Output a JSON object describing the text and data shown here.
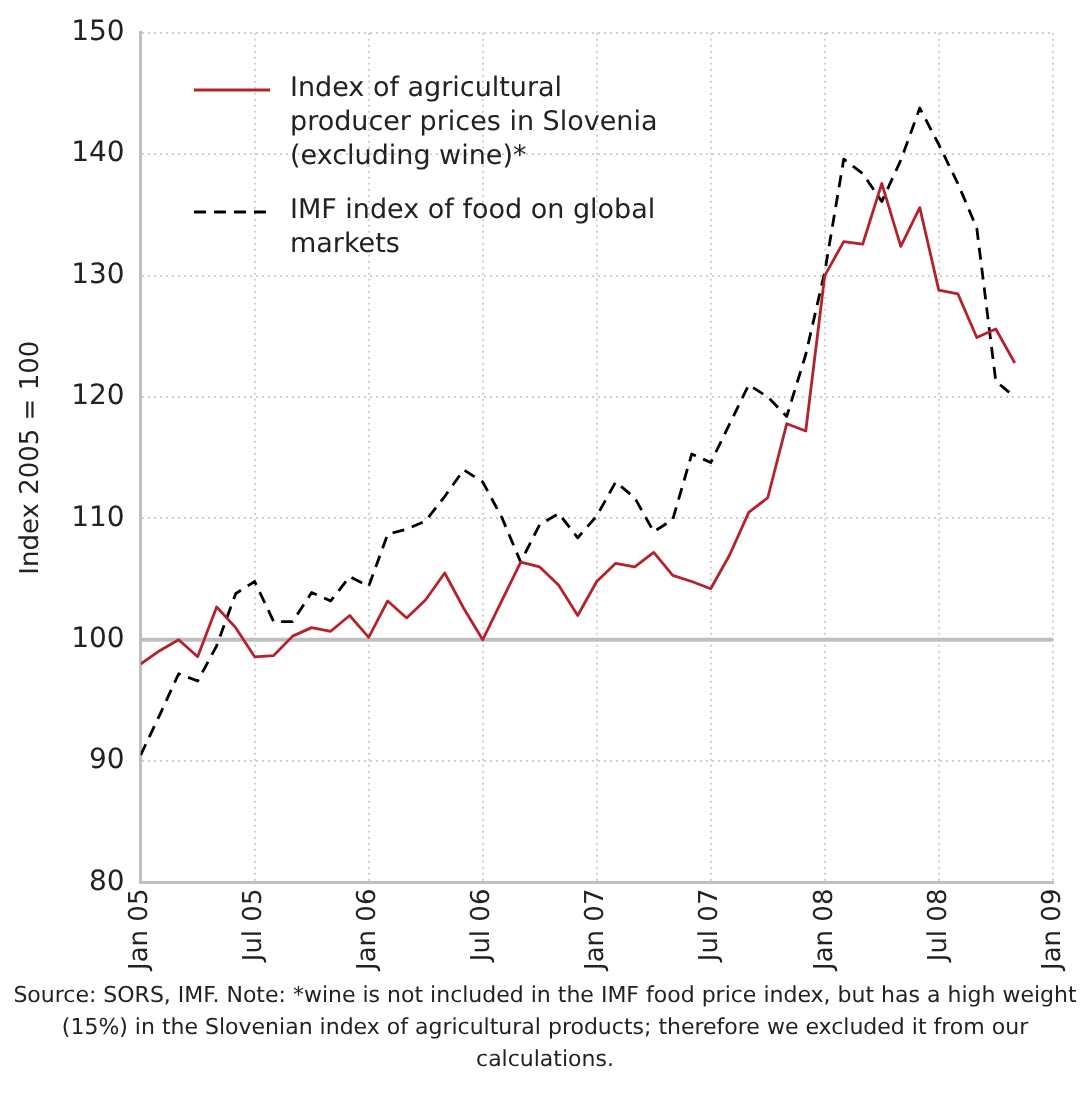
{
  "chart_data": {
    "type": "line",
    "ylabel": "Index 2005 = 100",
    "x": [
      "2005-01",
      "2005-02",
      "2005-03",
      "2005-04",
      "2005-05",
      "2005-06",
      "2005-07",
      "2005-08",
      "2005-09",
      "2005-10",
      "2005-11",
      "2005-12",
      "2006-01",
      "2006-02",
      "2006-03",
      "2006-04",
      "2006-05",
      "2006-06",
      "2006-07",
      "2006-08",
      "2006-09",
      "2006-10",
      "2006-11",
      "2006-12",
      "2007-01",
      "2007-02",
      "2007-03",
      "2007-04",
      "2007-05",
      "2007-06",
      "2007-07",
      "2007-08",
      "2007-09",
      "2007-10",
      "2007-11",
      "2007-12",
      "2008-01",
      "2008-02",
      "2008-03",
      "2008-04",
      "2008-05",
      "2008-06",
      "2008-07",
      "2008-08",
      "2008-09",
      "2008-10",
      "2008-11"
    ],
    "series": [
      {
        "name": "Index of agricultural producer prices in Slovenia (excluding wine)*",
        "color": "#b5222a",
        "line_style": "solid",
        "values": [
          98.0,
          99.1,
          100.0,
          98.6,
          102.7,
          101.0,
          98.6,
          98.7,
          100.3,
          101.0,
          100.7,
          102.0,
          100.2,
          103.2,
          101.8,
          103.3,
          105.5,
          102.6,
          100.0,
          103.2,
          106.4,
          106.0,
          104.5,
          102.0,
          104.8,
          106.3,
          106.0,
          107.2,
          105.3,
          104.8,
          104.2,
          107.0,
          110.5,
          111.7,
          117.8,
          117.2,
          130.0,
          132.8,
          132.6,
          137.6,
          132.4,
          135.6,
          128.8,
          128.5,
          124.9,
          125.6,
          122.8
        ]
      },
      {
        "name": "IMF index of food on global markets",
        "color": "#000000",
        "line_style": "dashed",
        "values": [
          90.5,
          93.8,
          97.2,
          96.6,
          99.5,
          103.8,
          104.8,
          101.5,
          101.5,
          103.9,
          103.2,
          105.2,
          104.4,
          108.7,
          109.1,
          109.8,
          111.8,
          114.0,
          113.0,
          110.1,
          106.4,
          109.5,
          110.4,
          108.4,
          110.2,
          113.0,
          111.7,
          108.9,
          109.9,
          115.3,
          114.6,
          117.8,
          121.0,
          120.0,
          118.4,
          123.5,
          130.3,
          139.6,
          138.4,
          136.1,
          139.5,
          143.8,
          140.8,
          137.6,
          133.9,
          121.3,
          120.0
        ]
      }
    ],
    "xlim": [
      "2005-01",
      "2009-01"
    ],
    "xticks": [
      {
        "value": "2005-01",
        "label": "Jan 05"
      },
      {
        "value": "2005-07",
        "label": "Jul 05"
      },
      {
        "value": "2006-01",
        "label": "Jan 06"
      },
      {
        "value": "2006-07",
        "label": "Jul 06"
      },
      {
        "value": "2007-01",
        "label": "Jan 07"
      },
      {
        "value": "2007-07",
        "label": "Jul 07"
      },
      {
        "value": "2008-01",
        "label": "Jan 08"
      },
      {
        "value": "2008-07",
        "label": "Jul 08"
      },
      {
        "value": "2009-01",
        "label": "Jan 09"
      }
    ],
    "ylim": [
      80,
      150
    ],
    "yticks": [
      80,
      90,
      100,
      110,
      120,
      130,
      140,
      150
    ],
    "grid": true,
    "legend": "top left",
    "marker": "none",
    "ref_lines": [
      {
        "axis": "y",
        "value": 100,
        "color": "#bfbfbf"
      }
    ],
    "annotations": [
      "Source: SORS, IMF. Note: *wine is not included in the IMF food price index, but has a high weight (15%) in the Slovenian index of agricultural products; therefore we excluded it from our calculations."
    ]
  }
}
